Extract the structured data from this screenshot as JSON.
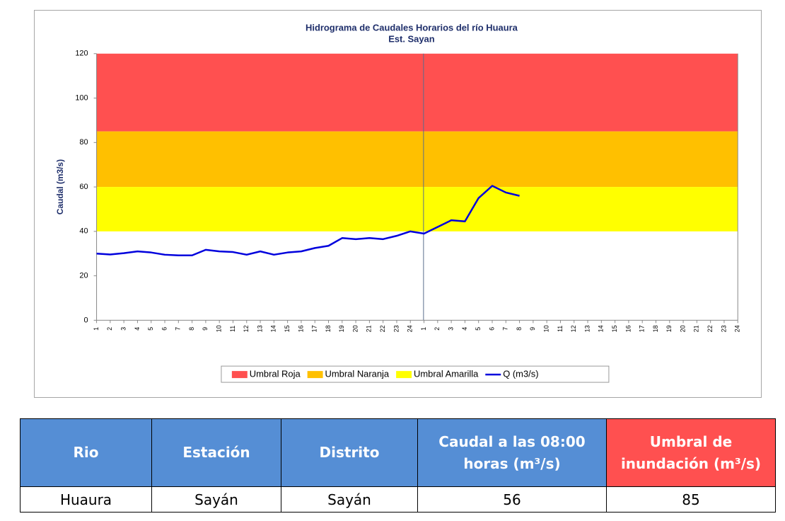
{
  "chart_data": {
    "type": "line",
    "title": "Hidrograma de Caudales Horarios del río Huaura",
    "subtitle": "Est. Sayan",
    "y_label": "Caudal  (m3/s)",
    "categories": [
      "1",
      "2",
      "3",
      "4",
      "5",
      "6",
      "7",
      "8",
      "9",
      "10",
      "11",
      "12",
      "13",
      "14",
      "15",
      "16",
      "17",
      "18",
      "19",
      "20",
      "21",
      "22",
      "23",
      "24",
      "1",
      "2",
      "3",
      "4",
      "5",
      "6",
      "7",
      "8",
      "9",
      "10",
      "11",
      "12",
      "13",
      "14",
      "15",
      "16",
      "17",
      "18",
      "19",
      "20",
      "21",
      "22",
      "23",
      "24"
    ],
    "ylim": [
      0,
      120
    ],
    "yticks": [
      0,
      20,
      40,
      60,
      80,
      100,
      120
    ],
    "bands": [
      {
        "name": "Umbral Roja",
        "color": "#ff5050",
        "from": 85,
        "to": 120
      },
      {
        "name": "Umbral Naranja",
        "color": "#ffc000",
        "from": 60,
        "to": 85
      },
      {
        "name": "Umbral Amarilla",
        "color": "#ffff00",
        "from": 40,
        "to": 60
      }
    ],
    "series": [
      {
        "name": "Q (m3/s)",
        "color": "#0000dd",
        "values": [
          30,
          29.6,
          30.2,
          31,
          30.5,
          29.5,
          29.2,
          29.2,
          31.7,
          31,
          30.7,
          29.5,
          31,
          29.5,
          30.5,
          31,
          32.5,
          33.5,
          37,
          36.5,
          37,
          36.5,
          38,
          40,
          39,
          42,
          45,
          44.5,
          55,
          60.5,
          57.5,
          56,
          null,
          null,
          null,
          null,
          null,
          null,
          null,
          null,
          null,
          null,
          null,
          null,
          null,
          null,
          null,
          null
        ]
      }
    ]
  },
  "table": {
    "header": [
      "Rio",
      "Estación",
      "Distrito",
      "Caudal a las 08:00 horas (m³/s)",
      "Umbral de inundación (m³/s)"
    ],
    "rows": [
      [
        "Huaura",
        "Sayán",
        "Sayán",
        "56",
        "85"
      ]
    ]
  }
}
